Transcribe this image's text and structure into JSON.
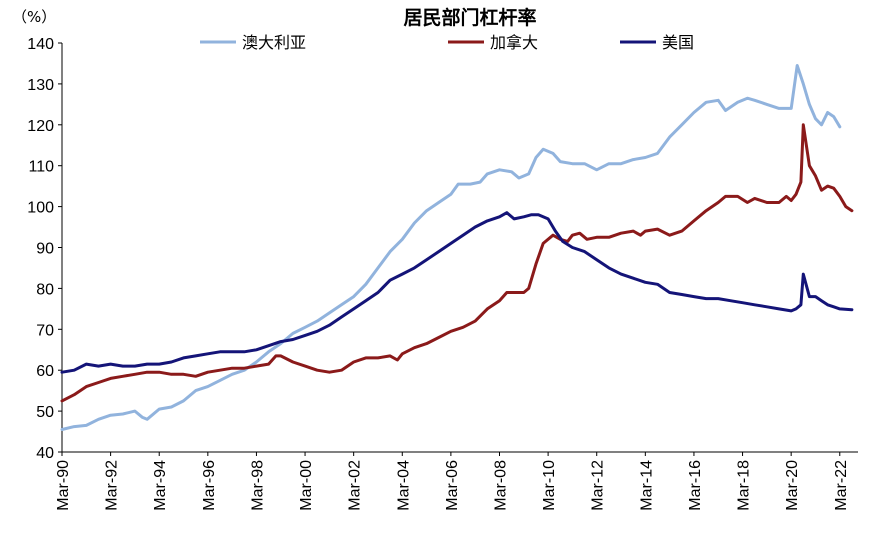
{
  "chart_data": {
    "type": "line",
    "title": "居民部门杠杆率",
    "unit_label": "（%）",
    "ylim": [
      40,
      140
    ],
    "yticks": [
      40,
      50,
      60,
      70,
      80,
      90,
      100,
      110,
      120,
      130,
      140
    ],
    "grid": false,
    "legend_position": "top",
    "x_tick_labels": [
      "Mar-90",
      "Mar-92",
      "Mar-94",
      "Mar-96",
      "Mar-98",
      "Mar-00",
      "Mar-02",
      "Mar-04",
      "Mar-06",
      "Mar-08",
      "Mar-10",
      "Mar-12",
      "Mar-14",
      "Mar-16",
      "Mar-18",
      "Mar-20",
      "Mar-22"
    ],
    "x_tick_years": [
      1990,
      1992,
      1994,
      1996,
      1998,
      2000,
      2002,
      2004,
      2006,
      2008,
      2010,
      2012,
      2014,
      2016,
      2018,
      2020,
      2022
    ],
    "series": [
      {
        "name": "澳大利亚",
        "color": "#91b3dd",
        "points": [
          [
            1990.0,
            45.5
          ],
          [
            1990.5,
            46.2
          ],
          [
            1991.0,
            46.5
          ],
          [
            1991.5,
            48.0
          ],
          [
            1992.0,
            49.0
          ],
          [
            1992.5,
            49.3
          ],
          [
            1993.0,
            50.0
          ],
          [
            1993.3,
            48.5
          ],
          [
            1993.5,
            48.0
          ],
          [
            1994.0,
            50.5
          ],
          [
            1994.5,
            51.0
          ],
          [
            1995.0,
            52.5
          ],
          [
            1995.5,
            55.0
          ],
          [
            1996.0,
            56.0
          ],
          [
            1996.5,
            57.5
          ],
          [
            1997.0,
            59.0
          ],
          [
            1997.5,
            60.0
          ],
          [
            1998.0,
            62.0
          ],
          [
            1998.5,
            64.5
          ],
          [
            1999.0,
            66.5
          ],
          [
            1999.5,
            69.0
          ],
          [
            2000.0,
            70.5
          ],
          [
            2000.5,
            72.0
          ],
          [
            2001.0,
            74.0
          ],
          [
            2001.5,
            76.0
          ],
          [
            2002.0,
            78.0
          ],
          [
            2002.5,
            81.0
          ],
          [
            2003.0,
            85.0
          ],
          [
            2003.5,
            89.0
          ],
          [
            2004.0,
            92.0
          ],
          [
            2004.5,
            96.0
          ],
          [
            2005.0,
            99.0
          ],
          [
            2005.5,
            101.0
          ],
          [
            2006.0,
            103.0
          ],
          [
            2006.3,
            105.5
          ],
          [
            2006.8,
            105.5
          ],
          [
            2007.2,
            106.0
          ],
          [
            2007.5,
            108.0
          ],
          [
            2008.0,
            109.0
          ],
          [
            2008.5,
            108.5
          ],
          [
            2008.8,
            107.0
          ],
          [
            2009.2,
            108.0
          ],
          [
            2009.5,
            112.0
          ],
          [
            2009.8,
            114.0
          ],
          [
            2010.2,
            113.0
          ],
          [
            2010.5,
            111.0
          ],
          [
            2011.0,
            110.5
          ],
          [
            2011.5,
            110.5
          ],
          [
            2012.0,
            109.0
          ],
          [
            2012.5,
            110.5
          ],
          [
            2013.0,
            110.5
          ],
          [
            2013.5,
            111.5
          ],
          [
            2014.0,
            112.0
          ],
          [
            2014.5,
            113.0
          ],
          [
            2015.0,
            117.0
          ],
          [
            2015.5,
            120.0
          ],
          [
            2016.0,
            123.0
          ],
          [
            2016.5,
            125.5
          ],
          [
            2017.0,
            126.0
          ],
          [
            2017.3,
            123.5
          ],
          [
            2017.8,
            125.5
          ],
          [
            2018.2,
            126.5
          ],
          [
            2018.5,
            126.0
          ],
          [
            2019.0,
            125.0
          ],
          [
            2019.5,
            124.0
          ],
          [
            2020.0,
            124.0
          ],
          [
            2020.25,
            134.5
          ],
          [
            2020.5,
            130.0
          ],
          [
            2020.75,
            125.0
          ],
          [
            2021.0,
            121.5
          ],
          [
            2021.25,
            120.0
          ],
          [
            2021.5,
            123.0
          ],
          [
            2021.75,
            122.0
          ],
          [
            2022.0,
            119.5
          ]
        ]
      },
      {
        "name": "加拿大",
        "color": "#8b1a1a",
        "points": [
          [
            1990.0,
            52.5
          ],
          [
            1990.5,
            54.0
          ],
          [
            1991.0,
            56.0
          ],
          [
            1991.5,
            57.0
          ],
          [
            1992.0,
            58.0
          ],
          [
            1992.5,
            58.5
          ],
          [
            1993.0,
            59.0
          ],
          [
            1993.5,
            59.5
          ],
          [
            1994.0,
            59.5
          ],
          [
            1994.5,
            59.0
          ],
          [
            1995.0,
            59.0
          ],
          [
            1995.5,
            58.5
          ],
          [
            1996.0,
            59.5
          ],
          [
            1996.5,
            60.0
          ],
          [
            1997.0,
            60.5
          ],
          [
            1997.5,
            60.5
          ],
          [
            1998.0,
            61.0
          ],
          [
            1998.5,
            61.5
          ],
          [
            1998.8,
            63.5
          ],
          [
            1999.0,
            63.5
          ],
          [
            1999.5,
            62.0
          ],
          [
            2000.0,
            61.0
          ],
          [
            2000.5,
            60.0
          ],
          [
            2001.0,
            59.5
          ],
          [
            2001.5,
            60.0
          ],
          [
            2002.0,
            62.0
          ],
          [
            2002.5,
            63.0
          ],
          [
            2003.0,
            63.0
          ],
          [
            2003.5,
            63.5
          ],
          [
            2003.8,
            62.5
          ],
          [
            2004.0,
            64.0
          ],
          [
            2004.5,
            65.5
          ],
          [
            2005.0,
            66.5
          ],
          [
            2005.5,
            68.0
          ],
          [
            2006.0,
            69.5
          ],
          [
            2006.5,
            70.5
          ],
          [
            2007.0,
            72.0
          ],
          [
            2007.5,
            75.0
          ],
          [
            2008.0,
            77.0
          ],
          [
            2008.3,
            79.0
          ],
          [
            2008.6,
            79.0
          ],
          [
            2009.0,
            79.0
          ],
          [
            2009.2,
            80.0
          ],
          [
            2009.5,
            86.0
          ],
          [
            2009.8,
            91.0
          ],
          [
            2010.2,
            93.0
          ],
          [
            2010.5,
            92.0
          ],
          [
            2010.8,
            91.5
          ],
          [
            2011.0,
            93.0
          ],
          [
            2011.3,
            93.5
          ],
          [
            2011.6,
            92.0
          ],
          [
            2012.0,
            92.5
          ],
          [
            2012.5,
            92.5
          ],
          [
            2013.0,
            93.5
          ],
          [
            2013.5,
            94.0
          ],
          [
            2013.8,
            93.0
          ],
          [
            2014.0,
            94.0
          ],
          [
            2014.5,
            94.5
          ],
          [
            2015.0,
            93.0
          ],
          [
            2015.5,
            94.0
          ],
          [
            2016.0,
            96.5
          ],
          [
            2016.5,
            99.0
          ],
          [
            2017.0,
            101.0
          ],
          [
            2017.3,
            102.5
          ],
          [
            2017.8,
            102.5
          ],
          [
            2018.2,
            101.0
          ],
          [
            2018.5,
            102.0
          ],
          [
            2019.0,
            101.0
          ],
          [
            2019.5,
            101.0
          ],
          [
            2019.8,
            102.5
          ],
          [
            2020.0,
            101.5
          ],
          [
            2020.2,
            103.0
          ],
          [
            2020.4,
            106.0
          ],
          [
            2020.5,
            120.0
          ],
          [
            2020.75,
            110.0
          ],
          [
            2021.0,
            107.5
          ],
          [
            2021.25,
            104.0
          ],
          [
            2021.5,
            105.0
          ],
          [
            2021.75,
            104.5
          ],
          [
            2022.0,
            102.5
          ],
          [
            2022.25,
            100.0
          ],
          [
            2022.5,
            99.0
          ]
        ]
      },
      {
        "name": "美国",
        "color": "#141478",
        "points": [
          [
            1990.0,
            59.5
          ],
          [
            1990.5,
            60.0
          ],
          [
            1991.0,
            61.5
          ],
          [
            1991.5,
            61.0
          ],
          [
            1992.0,
            61.5
          ],
          [
            1992.5,
            61.0
          ],
          [
            1993.0,
            61.0
          ],
          [
            1993.5,
            61.5
          ],
          [
            1994.0,
            61.5
          ],
          [
            1994.5,
            62.0
          ],
          [
            1995.0,
            63.0
          ],
          [
            1995.5,
            63.5
          ],
          [
            1996.0,
            64.0
          ],
          [
            1996.5,
            64.5
          ],
          [
            1997.0,
            64.5
          ],
          [
            1997.5,
            64.5
          ],
          [
            1998.0,
            65.0
          ],
          [
            1998.5,
            66.0
          ],
          [
            1999.0,
            67.0
          ],
          [
            1999.5,
            67.5
          ],
          [
            2000.0,
            68.5
          ],
          [
            2000.5,
            69.5
          ],
          [
            2001.0,
            71.0
          ],
          [
            2001.5,
            73.0
          ],
          [
            2002.0,
            75.0
          ],
          [
            2002.5,
            77.0
          ],
          [
            2003.0,
            79.0
          ],
          [
            2003.5,
            82.0
          ],
          [
            2004.0,
            83.5
          ],
          [
            2004.5,
            85.0
          ],
          [
            2005.0,
            87.0
          ],
          [
            2005.5,
            89.0
          ],
          [
            2006.0,
            91.0
          ],
          [
            2006.5,
            93.0
          ],
          [
            2007.0,
            95.0
          ],
          [
            2007.5,
            96.5
          ],
          [
            2008.0,
            97.5
          ],
          [
            2008.3,
            98.5
          ],
          [
            2008.6,
            97.0
          ],
          [
            2009.0,
            97.5
          ],
          [
            2009.3,
            98.0
          ],
          [
            2009.6,
            98.0
          ],
          [
            2010.0,
            97.0
          ],
          [
            2010.3,
            94.0
          ],
          [
            2010.6,
            91.5
          ],
          [
            2011.0,
            90.0
          ],
          [
            2011.5,
            89.0
          ],
          [
            2012.0,
            87.0
          ],
          [
            2012.5,
            85.0
          ],
          [
            2013.0,
            83.5
          ],
          [
            2013.5,
            82.5
          ],
          [
            2014.0,
            81.5
          ],
          [
            2014.5,
            81.0
          ],
          [
            2015.0,
            79.0
          ],
          [
            2015.5,
            78.5
          ],
          [
            2016.0,
            78.0
          ],
          [
            2016.5,
            77.5
          ],
          [
            2017.0,
            77.5
          ],
          [
            2017.5,
            77.0
          ],
          [
            2018.0,
            76.5
          ],
          [
            2018.5,
            76.0
          ],
          [
            2019.0,
            75.5
          ],
          [
            2019.5,
            75.0
          ],
          [
            2020.0,
            74.5
          ],
          [
            2020.2,
            75.0
          ],
          [
            2020.4,
            76.0
          ],
          [
            2020.5,
            83.5
          ],
          [
            2020.75,
            78.0
          ],
          [
            2021.0,
            78.0
          ],
          [
            2021.25,
            77.0
          ],
          [
            2021.5,
            76.0
          ],
          [
            2021.75,
            75.5
          ],
          [
            2022.0,
            75.0
          ],
          [
            2022.5,
            74.8
          ]
        ]
      }
    ]
  }
}
